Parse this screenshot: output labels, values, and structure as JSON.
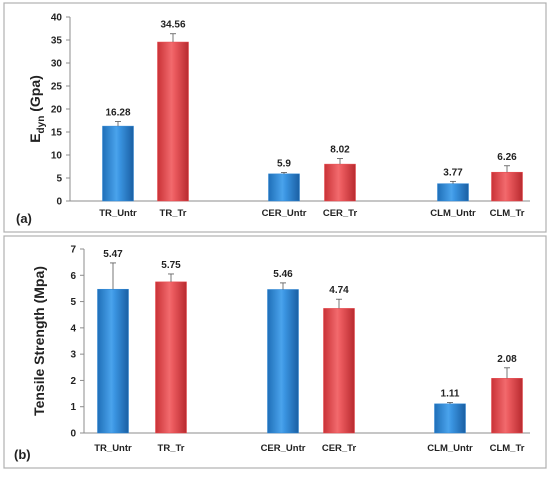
{
  "chart_data": [
    {
      "type": "bar",
      "panel_label": "(a)",
      "ylabel_main": "E",
      "ylabel_sub": "dyn",
      "ylabel_unit": "(Gpa)",
      "ylim": [
        0,
        40
      ],
      "yticks": [
        "0",
        "5",
        "10",
        "15",
        "20",
        "25",
        "30",
        "35",
        "40"
      ],
      "grid": false,
      "categories": [
        "TR_Untr",
        "TR_Tr",
        "CER_Untr",
        "CER_Tr",
        "CLM_Untr",
        "CLM_Tr"
      ],
      "values": [
        16.28,
        34.56,
        5.9,
        8.02,
        3.77,
        6.26
      ],
      "value_labels": [
        "16.28",
        "34.56",
        "5.9",
        "8.02",
        "3.77",
        "6.26"
      ],
      "error": [
        1.0,
        1.8,
        0.3,
        1.2,
        0.5,
        1.4
      ],
      "colors": [
        "#2e86d4",
        "#e8474b",
        "#2e86d4",
        "#e8474b",
        "#2e86d4",
        "#e8474b"
      ]
    },
    {
      "type": "bar",
      "panel_label": "(b)",
      "ylabel": "Tensile Strength (Mpa)",
      "ylim": [
        0,
        7
      ],
      "yticks": [
        "0",
        "1",
        "2",
        "3",
        "4",
        "5",
        "6",
        "7"
      ],
      "grid": false,
      "categories": [
        "TR_Untr",
        "TR_Tr",
        "CER_Untr",
        "CER_Tr",
        "CLM_Untr",
        "CLM_Tr"
      ],
      "values": [
        5.47,
        5.75,
        5.46,
        4.74,
        1.11,
        2.08
      ],
      "value_labels": [
        "5.47",
        "5.75",
        "5.46",
        "4.74",
        "1.11",
        "2.08"
      ],
      "error": [
        1.0,
        0.3,
        0.25,
        0.35,
        0.05,
        0.4
      ],
      "colors": [
        "#2e86d4",
        "#e8474b",
        "#2e86d4",
        "#e8474b",
        "#2e86d4",
        "#e8474b"
      ]
    }
  ]
}
